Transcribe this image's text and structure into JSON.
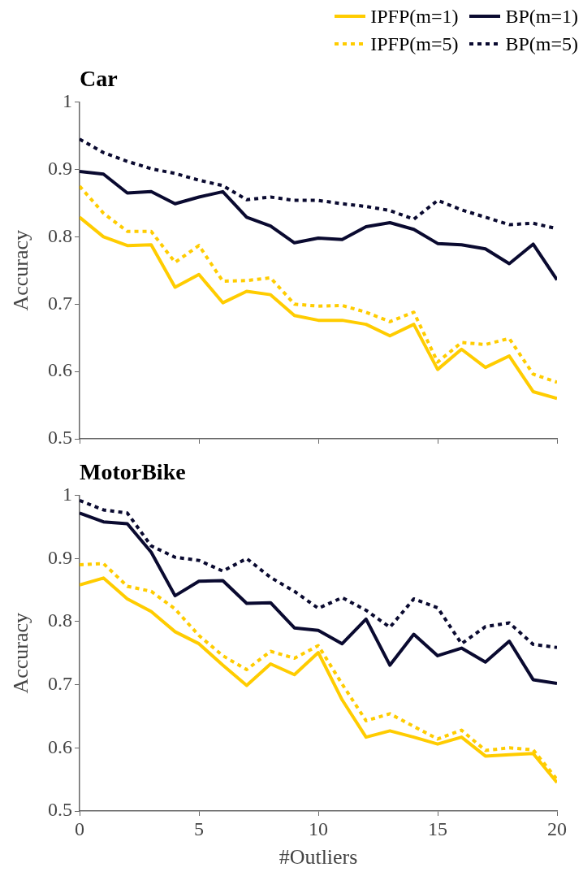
{
  "chart_data": [
    {
      "type": "line",
      "title": "Car",
      "ylabel": "Accuracy",
      "x": [
        0,
        1,
        2,
        3,
        4,
        5,
        6,
        7,
        8,
        9,
        10,
        11,
        12,
        13,
        14,
        15,
        16,
        17,
        18,
        19,
        20
      ],
      "xlim": [
        0,
        20
      ],
      "xticks": [
        0,
        5,
        10,
        15,
        20
      ],
      "ylim": [
        0.5,
        1
      ],
      "yticks": [
        0.5,
        0.6,
        0.7,
        0.8,
        0.9,
        1
      ],
      "tick_labels": "y",
      "grid": false,
      "legend": "top right",
      "marker": "none",
      "series": [
        {
          "name": "IPFP(m=1)",
          "color": "#ffcc00",
          "line_style": "solid",
          "values": [
            0.829,
            0.8,
            0.787,
            0.788,
            0.725,
            0.744,
            0.702,
            0.719,
            0.714,
            0.683,
            0.676,
            0.676,
            0.67,
            0.653,
            0.67,
            0.603,
            0.633,
            0.606,
            0.623,
            0.57,
            0.56
          ]
        },
        {
          "name": "BP(m=1)",
          "color": "#0a0a30",
          "line_style": "solid",
          "values": [
            0.897,
            0.893,
            0.865,
            0.867,
            0.849,
            0.859,
            0.867,
            0.829,
            0.816,
            0.791,
            0.798,
            0.796,
            0.815,
            0.821,
            0.811,
            0.79,
            0.788,
            0.782,
            0.76,
            0.789,
            0.736
          ]
        },
        {
          "name": "IPFP(m=5)",
          "color": "#ffcc00",
          "line_style": "dotted",
          "values": [
            0.875,
            0.835,
            0.808,
            0.808,
            0.762,
            0.787,
            0.734,
            0.735,
            0.739,
            0.7,
            0.697,
            0.698,
            0.688,
            0.674,
            0.688,
            0.614,
            0.643,
            0.64,
            0.649,
            0.596,
            0.584
          ]
        },
        {
          "name": "BP(m=5)",
          "color": "#0a0a30",
          "line_style": "dotted",
          "values": [
            0.945,
            0.925,
            0.912,
            0.901,
            0.894,
            0.884,
            0.876,
            0.855,
            0.859,
            0.854,
            0.854,
            0.849,
            0.845,
            0.839,
            0.826,
            0.854,
            0.84,
            0.829,
            0.818,
            0.82,
            0.812
          ]
        }
      ]
    },
    {
      "type": "line",
      "title": "MotorBike",
      "xlabel": "#Outliers",
      "ylabel": "Accuracy",
      "x": [
        0,
        1,
        2,
        3,
        4,
        5,
        6,
        7,
        8,
        9,
        10,
        11,
        12,
        13,
        14,
        15,
        16,
        17,
        18,
        19,
        20
      ],
      "xlim": [
        0,
        20
      ],
      "xticks": [
        0,
        5,
        10,
        15,
        20
      ],
      "ylim": [
        0.5,
        1
      ],
      "yticks": [
        0.5,
        0.6,
        0.7,
        0.8,
        0.9,
        1
      ],
      "grid": false,
      "marker": "none",
      "series": [
        {
          "color": "#ffcc00",
          "line_style": "solid",
          "values": [
            0.858,
            0.869,
            0.836,
            0.816,
            0.784,
            0.765,
            0.731,
            0.699,
            0.733,
            0.716,
            0.751,
            0.676,
            0.617,
            0.627,
            0.617,
            0.606,
            0.617,
            0.587,
            0.589,
            0.591,
            0.545
          ]
        },
        {
          "color": "#0a0a30",
          "line_style": "solid",
          "values": [
            0.972,
            0.958,
            0.955,
            0.91,
            0.841,
            0.864,
            0.865,
            0.829,
            0.83,
            0.79,
            0.786,
            0.765,
            0.804,
            0.731,
            0.78,
            0.746,
            0.758,
            0.736,
            0.769,
            0.708,
            0.702
          ]
        },
        {
          "color": "#ffcc00",
          "line_style": "dotted",
          "values": [
            0.89,
            0.892,
            0.856,
            0.848,
            0.82,
            0.778,
            0.746,
            0.724,
            0.753,
            0.742,
            0.762,
            0.701,
            0.643,
            0.654,
            0.634,
            0.614,
            0.628,
            0.596,
            0.6,
            0.597,
            0.55
          ]
        },
        {
          "color": "#0a0a30",
          "line_style": "dotted",
          "values": [
            0.992,
            0.977,
            0.972,
            0.92,
            0.902,
            0.897,
            0.88,
            0.9,
            0.87,
            0.848,
            0.821,
            0.838,
            0.818,
            0.791,
            0.836,
            0.822,
            0.765,
            0.792,
            0.798,
            0.764,
            0.759
          ]
        }
      ]
    }
  ]
}
